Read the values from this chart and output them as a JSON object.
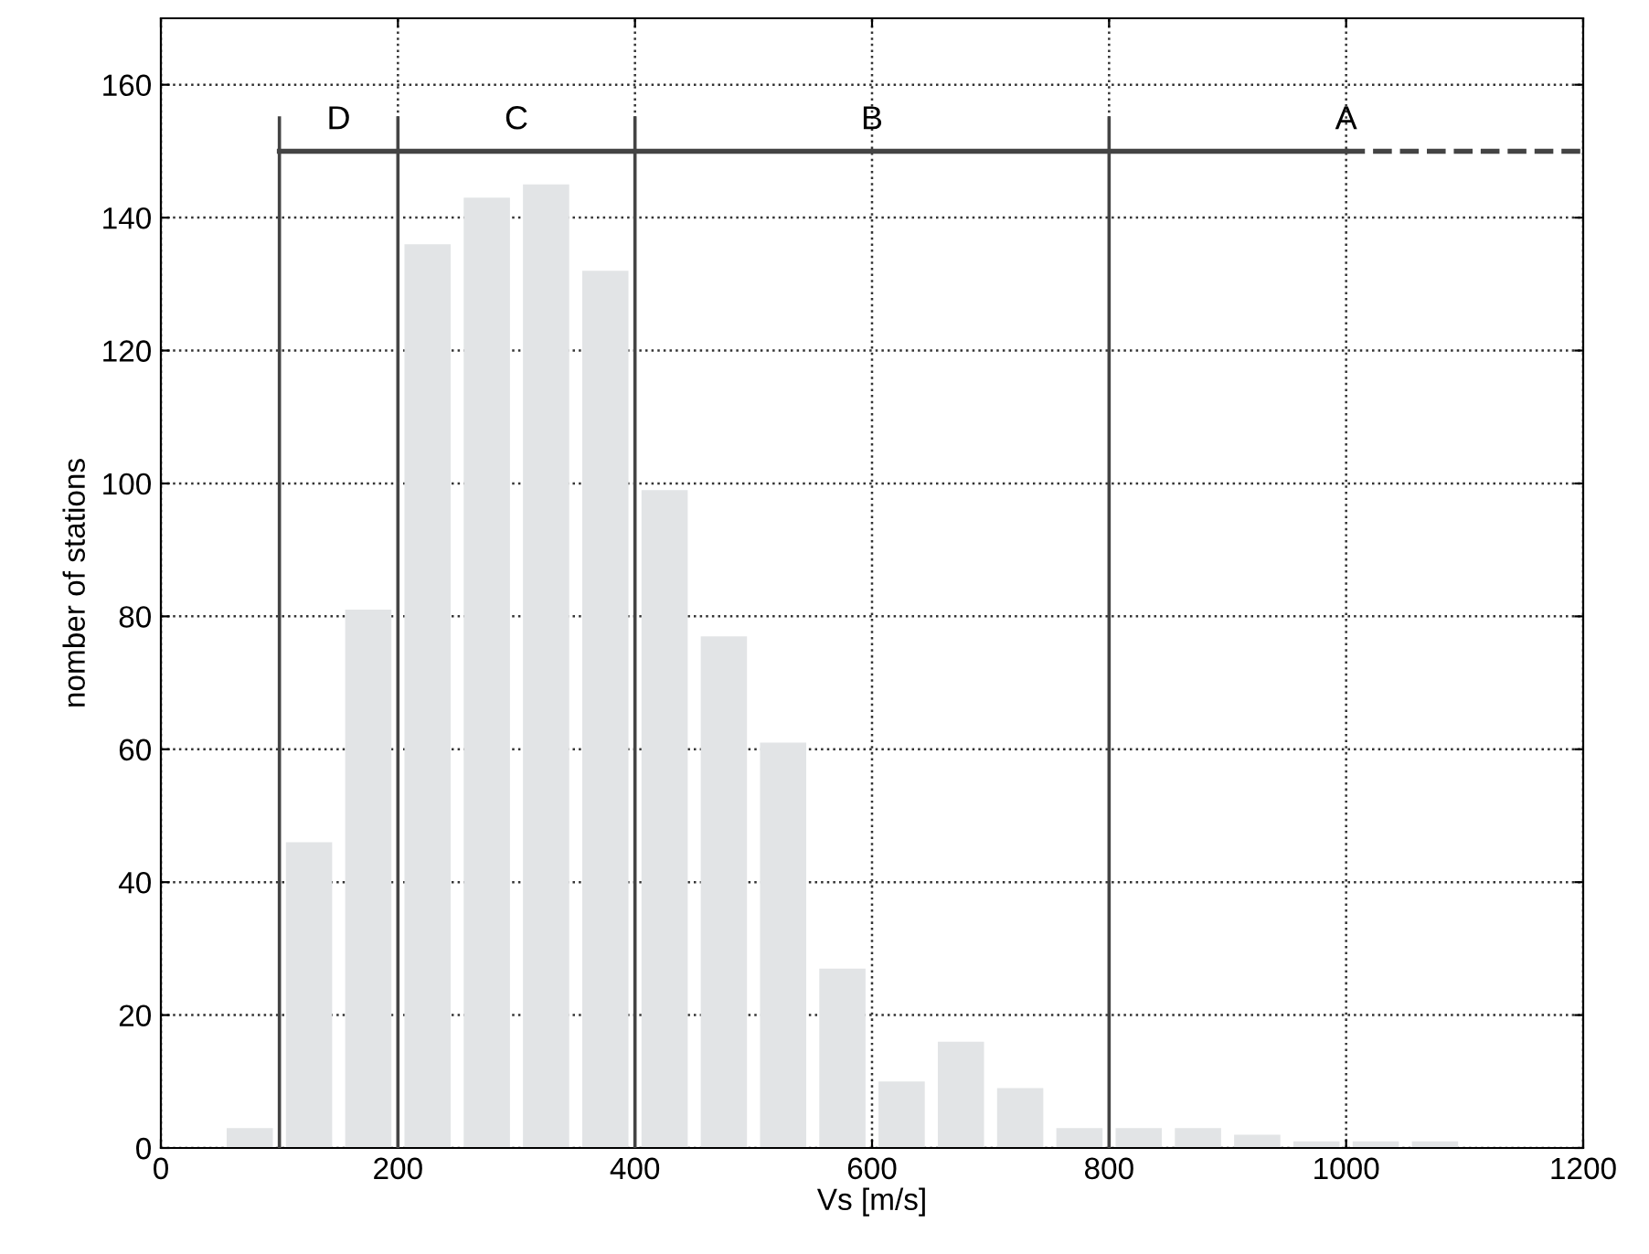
{
  "chart_data": {
    "type": "histogram",
    "xlabel": "Vs [m/s]",
    "ylabel": "nomber of stations",
    "bins": [
      50,
      100,
      150,
      200,
      250,
      300,
      350,
      400,
      450,
      500,
      550,
      600,
      650,
      700,
      750,
      800,
      850,
      900,
      950,
      1000,
      1050,
      1100
    ],
    "values": [
      3,
      46,
      81,
      136,
      143,
      145,
      132,
      99,
      77,
      61,
      27,
      10,
      16,
      9,
      3,
      3,
      3,
      2,
      1,
      1,
      1
    ],
    "color": "#e2e4e6",
    "xlim": [
      0,
      1200
    ],
    "xticks": [
      0,
      200,
      400,
      600,
      800,
      1000,
      1200
    ],
    "ylim": [
      0,
      170
    ],
    "yticks": [
      0,
      20,
      40,
      60,
      80,
      100,
      120,
      140,
      160
    ],
    "grid": true,
    "series": [
      {
        "type": "line",
        "color": "#444444",
        "x": [
          100,
          1000
        ],
        "values": [
          150,
          150
        ],
        "line_style": "solid"
      },
      {
        "type": "line",
        "color": "#444444",
        "x": [
          1000,
          1200
        ],
        "values": [
          150,
          150
        ],
        "line_style": "dashed"
      }
    ],
    "ref_lines": [
      {
        "axis": "x",
        "value": 100,
        "color": "#444444"
      },
      {
        "axis": "x",
        "value": 200,
        "color": "#444444"
      },
      {
        "axis": "x",
        "value": 400,
        "color": "#444444"
      },
      {
        "axis": "x",
        "value": 800,
        "color": "#444444"
      }
    ],
    "annotations": [
      {
        "text": "D",
        "x": 150,
        "y": 150
      },
      {
        "text": "C",
        "x": 300,
        "y": 150
      },
      {
        "text": "B",
        "x": 600,
        "y": 150
      },
      {
        "text": "A",
        "x": 1000,
        "y": 150
      }
    ]
  }
}
